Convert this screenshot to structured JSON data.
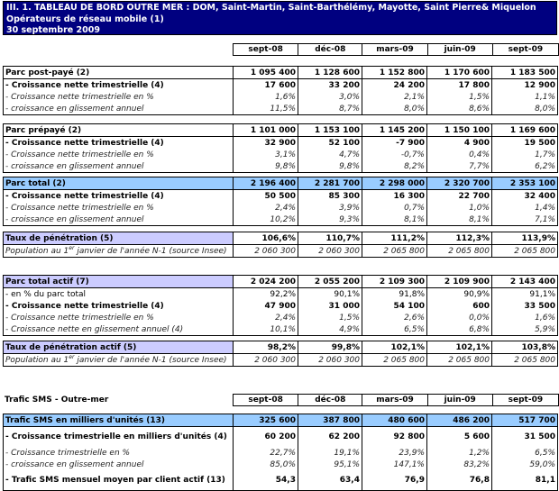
{
  "title": {
    "line1": "III. 1. TABLEAU DE BORD OUTRE MER : DOM, Saint-Martin, Saint-Barthélémy, Mayotte, Saint Pierre& Miquelon",
    "line2": "Opérateurs de réseau mobile (1)",
    "line3": "30 septembre  2009"
  },
  "colors": {
    "title_bg": "#000080",
    "total_bg": "#99ccff",
    "penetration_bg": "#ccccff"
  },
  "columns": [
    "sept-08",
    "déc-08",
    "mars-09",
    "juin-09",
    "sept-09"
  ],
  "blocks": [
    {
      "style": "plain",
      "rows": [
        {
          "type": "head",
          "label": "Parc post-payé (2)",
          "values": [
            "1 095 400",
            "1 128 600",
            "1 152 800",
            "1 170 600",
            "1 183 500"
          ]
        },
        {
          "type": "bold",
          "label": "- Croissance nette trimestrielle (4)",
          "values": [
            "17 600",
            "33 200",
            "24 200",
            "17 800",
            "12 900"
          ]
        },
        {
          "type": "italic",
          "label": "- Croissance nette trimestrielle en %",
          "values": [
            "1,6%",
            "3,0%",
            "2,1%",
            "1,5%",
            "1,1%"
          ]
        },
        {
          "type": "italic",
          "label": "- croissance en glissement annuel",
          "values": [
            "11,5%",
            "8,7%",
            "8,0%",
            "8,6%",
            "8,0%"
          ]
        }
      ]
    },
    {
      "style": "plain",
      "rows": [
        {
          "type": "head",
          "label": "Parc prépayé (2)",
          "values": [
            "1 101 000",
            "1 153 100",
            "1 145 200",
            "1 150 100",
            "1 169 600"
          ]
        },
        {
          "type": "bold",
          "label": "- Croissance nette trimestrielle (4)",
          "values": [
            "32 900",
            "52 100",
            "-7 900",
            "4 900",
            "19 500"
          ]
        },
        {
          "type": "italic",
          "label": "- Croissance nette trimestrielle en %",
          "values": [
            "3,1%",
            "4,7%",
            "-0,7%",
            "0,4%",
            "1,7%"
          ]
        },
        {
          "type": "italic",
          "label": "- croissance en glissement annuel",
          "values": [
            "9,8%",
            "9,8%",
            "8,2%",
            "7,7%",
            "6,2%"
          ]
        }
      ]
    },
    {
      "style": "blue",
      "rows": [
        {
          "type": "head",
          "label": "Parc total (2)",
          "values": [
            "2 196 400",
            "2 281 700",
            "2 298 000",
            "2 320 700",
            "2 353 100"
          ]
        },
        {
          "type": "bold",
          "label": "- Croissance nette trimestrielle (4)",
          "values": [
            "50 500",
            "85 300",
            "16 300",
            "22 700",
            "32 400"
          ]
        },
        {
          "type": "italic",
          "label": "- Croissance nette trimestrielle en %",
          "values": [
            "2,4%",
            "3,9%",
            "0,7%",
            "1,0%",
            "1,4%"
          ]
        },
        {
          "type": "italic",
          "label": "- croissance en glissement annuel",
          "values": [
            "10,2%",
            "9,3%",
            "8,1%",
            "8,1%",
            "7,1%"
          ]
        }
      ]
    },
    {
      "style": "lav",
      "rows": [
        {
          "type": "head",
          "label": "Taux de pénétration (5)",
          "values": [
            "106,6%",
            "110,7%",
            "111,2%",
            "112,3%",
            "113,9%"
          ]
        },
        {
          "type": "italic",
          "label": "Population au 1",
          "sup": "er",
          "label_after": " janvier de l'année N-1 (source Insee)",
          "values": [
            "2 060 300",
            "2 060 300",
            "2 065 800",
            "2 065 800",
            "2 065 800"
          ]
        }
      ]
    },
    {
      "style": "lav",
      "rows": [
        {
          "type": "head",
          "label": "Parc total actif (7)",
          "values": [
            "2 024 200",
            "2 055 200",
            "2 109 300",
            "2 109 900",
            "2 143 400"
          ]
        },
        {
          "type": "normal",
          "label": "- en % du parc total",
          "values": [
            "92,2%",
            "90,1%",
            "91,8%",
            "90,9%",
            "91,1%"
          ]
        },
        {
          "type": "bold",
          "label": "- Croissance nette trimestrielle (4)",
          "values": [
            "47 900",
            "31 000",
            "54 100",
            "600",
            "33 500"
          ]
        },
        {
          "type": "italic",
          "label": "- Croissance nette trimestrielle en %",
          "values": [
            "2,4%",
            "1,5%",
            "2,6%",
            "0,0%",
            "1,6%"
          ]
        },
        {
          "type": "italic",
          "label": "- Croissance nette en glissement annuel (4)",
          "values": [
            "10,1%",
            "4,9%",
            "6,5%",
            "6,8%",
            "5,9%"
          ]
        }
      ]
    },
    {
      "style": "lav",
      "rows": [
        {
          "type": "head",
          "label": "Taux de pénétration actif (5)",
          "values": [
            "98,2%",
            "99,8%",
            "102,1%",
            "102,1%",
            "103,8%"
          ]
        },
        {
          "type": "italic",
          "label": "Population au 1",
          "sup": "er",
          "label_after": " janvier de l'année N-1 (source Insee)",
          "values": [
            "2 060 300",
            "2 060 300",
            "2 065 800",
            "2 065 800",
            "2 065 800"
          ]
        }
      ]
    },
    {
      "style": "blue",
      "rows": [
        {
          "type": "head",
          "label": "Trafic SMS en milliers d'unités (13)",
          "values": [
            "325 600",
            "387 800",
            "480 600",
            "486 200",
            "517 700"
          ]
        },
        {
          "type": "bold tall",
          "label": "- Croissance trimestrielle en milliers d'unités (4)",
          "values": [
            "60 200",
            "62 200",
            "92 800",
            "5 600",
            "31 500"
          ]
        },
        {
          "type": "italic",
          "label": "- Croissance trimestrielle en %",
          "values": [
            "22,7%",
            "19,1%",
            "23,9%",
            "1,2%",
            "6,5%"
          ]
        },
        {
          "type": "italic",
          "label": "- croissance en glissement annuel",
          "values": [
            "85,0%",
            "95,1%",
            "147,1%",
            "83,2%",
            "59,0%"
          ]
        },
        {
          "type": "bold tall",
          "label": "- Trafic SMS mensuel moyen par client actif (13)",
          "values": [
            "54,3",
            "63,4",
            "76,9",
            "76,8",
            "81,1"
          ]
        }
      ]
    }
  ],
  "sms": {
    "title": "Trafic SMS - Outre-mer"
  }
}
